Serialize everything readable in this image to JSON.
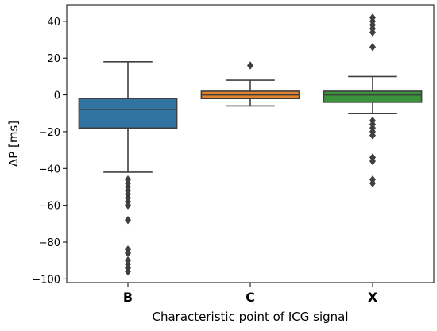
{
  "chart_data": {
    "type": "box",
    "xlabel": "Characteristic point of ICG signal",
    "ylabel": "ΔP [ms]",
    "ylim": [
      -102,
      49
    ],
    "yticks": [
      -100,
      -80,
      -60,
      -40,
      -20,
      0,
      20,
      40
    ],
    "grid": false,
    "legend": "none",
    "categories": [
      "B",
      "C",
      "X"
    ],
    "boxes": [
      {
        "category": "B",
        "color": "#3274a1",
        "whisker_low": -42,
        "q1": -18,
        "median": -8,
        "q3": -2,
        "whisker_high": 18,
        "outliers": [
          -46,
          -48,
          -50,
          -52,
          -54,
          -56,
          -58,
          -60,
          -68,
          -84,
          -86,
          -90,
          -92,
          -94,
          -96
        ]
      },
      {
        "category": "C",
        "color": "#e1812c",
        "whisker_low": -6,
        "q1": -2,
        "median": 0,
        "q3": 2,
        "whisker_high": 8,
        "outliers": [
          16
        ]
      },
      {
        "category": "X",
        "color": "#3a923a",
        "whisker_low": -10,
        "q1": -4,
        "median": 0,
        "q3": 2,
        "whisker_high": 10,
        "outliers": [
          26,
          34,
          36,
          38,
          40,
          42,
          -14,
          -16,
          -18,
          -20,
          -22,
          -34,
          -36,
          -46,
          -48
        ]
      }
    ]
  }
}
